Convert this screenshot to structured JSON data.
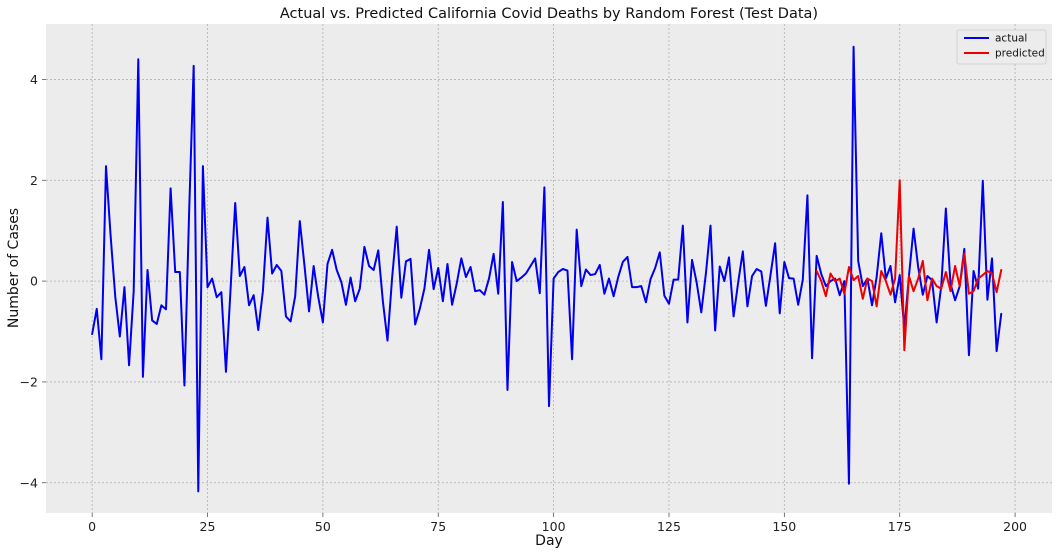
{
  "chart_data": {
    "type": "line",
    "title": "Actual vs. Predicted California Covid Deaths by Random Forest (Test Data)",
    "xlabel": "Day",
    "ylabel": "Number of Cases",
    "xlim": [
      -10,
      208
    ],
    "ylim": [
      -4.6,
      5.1
    ],
    "xticks": [
      0,
      25,
      50,
      75,
      100,
      125,
      150,
      175,
      200
    ],
    "yticks": [
      -4,
      -2,
      0,
      2,
      4
    ],
    "grid": true,
    "legend_position": "top-right",
    "series": [
      {
        "name": "actual",
        "color": "#0000ee",
        "x": [
          0,
          1,
          2,
          3,
          4,
          5,
          6,
          7,
          8,
          9,
          10,
          11,
          12,
          13,
          14,
          15,
          16,
          17,
          18,
          19,
          20,
          21,
          22,
          23,
          24,
          25,
          26,
          27,
          28,
          29,
          30,
          31,
          32,
          33,
          34,
          35,
          36,
          37,
          38,
          39,
          40,
          41,
          42,
          43,
          44,
          45,
          46,
          47,
          48,
          49,
          50,
          51,
          52,
          53,
          54,
          55,
          56,
          57,
          58,
          59,
          60,
          61,
          62,
          63,
          64,
          65,
          66,
          67,
          68,
          69,
          70,
          71,
          72,
          73,
          74,
          75,
          76,
          77,
          78,
          79,
          80,
          81,
          82,
          83,
          84,
          85,
          86,
          87,
          88,
          89,
          90,
          91,
          92,
          93,
          94,
          95,
          96,
          97,
          98,
          99,
          100,
          101,
          102,
          103,
          104,
          105,
          106,
          107,
          108,
          109,
          110,
          111,
          112,
          113,
          114,
          115,
          116,
          117,
          118,
          119,
          120,
          121,
          122,
          123,
          124,
          125,
          126,
          127,
          128,
          129,
          130,
          131,
          132,
          133,
          134,
          135,
          136,
          137,
          138,
          139,
          140,
          141,
          142,
          143,
          144,
          145,
          146,
          147,
          148,
          149,
          150,
          151,
          152,
          153,
          154,
          155,
          156,
          157,
          158,
          159,
          160,
          161,
          162,
          163,
          164,
          165,
          166,
          167,
          168,
          169,
          170,
          171,
          172,
          173,
          174,
          175,
          176,
          177,
          178,
          179,
          180,
          181,
          182,
          183,
          184,
          185,
          186,
          187,
          188,
          189,
          190,
          191,
          192,
          193,
          194,
          195,
          196,
          197
        ],
        "values": [
          -1.05,
          -0.55,
          -1.55,
          2.28,
          0.9,
          -0.3,
          -1.1,
          -0.12,
          -1.67,
          -0.2,
          4.4,
          -1.9,
          0.22,
          -0.78,
          -0.85,
          -0.48,
          -0.56,
          1.84,
          0.18,
          0.18,
          -2.07,
          1.32,
          4.27,
          -4.17,
          2.28,
          -0.12,
          0.05,
          -0.32,
          -0.22,
          -1.8,
          -0.15,
          1.55,
          0.1,
          0.28,
          -0.48,
          -0.28,
          -0.97,
          -0.2,
          1.26,
          0.15,
          0.32,
          0.2,
          -0.7,
          -0.8,
          -0.3,
          1.19,
          0.32,
          -0.6,
          0.3,
          -0.32,
          -0.82,
          0.34,
          0.62,
          0.22,
          -0.02,
          -0.47,
          0.07,
          -0.4,
          -0.15,
          0.68,
          0.3,
          0.22,
          0.61,
          -0.4,
          -1.18,
          0.06,
          1.08,
          -0.33,
          0.39,
          0.44,
          -0.86,
          -0.55,
          -0.15,
          0.62,
          -0.16,
          0.26,
          -0.4,
          0.34,
          -0.47,
          -0.05,
          0.45,
          0.08,
          0.28,
          -0.2,
          -0.18,
          -0.27,
          0.05,
          0.54,
          -0.25,
          1.57,
          -2.16,
          0.38,
          0.0,
          0.07,
          0.15,
          0.3,
          0.45,
          -0.24,
          1.86,
          -2.48,
          0.05,
          0.18,
          0.24,
          0.21,
          -1.55,
          1.02,
          -0.1,
          0.23,
          0.12,
          0.14,
          0.32,
          -0.25,
          0.05,
          -0.3,
          0.08,
          0.38,
          0.48,
          -0.12,
          -0.12,
          -0.1,
          -0.42,
          0.04,
          0.26,
          0.57,
          -0.29,
          -0.45,
          0.03,
          0.03,
          1.1,
          -0.82,
          0.42,
          -0.03,
          -0.62,
          0.15,
          1.1,
          -0.98,
          0.29,
          0.0,
          0.47,
          -0.7,
          -0.02,
          0.59,
          -0.5,
          0.1,
          0.24,
          0.19,
          -0.49,
          0.12,
          0.75,
          -0.64,
          0.38,
          0.06,
          0.05,
          -0.47,
          0.03,
          1.7,
          -1.53,
          0.5,
          0.14,
          -0.1,
          0.0,
          0.05,
          -0.28,
          0.0,
          -4.02,
          4.65,
          0.4,
          -0.1,
          0.05,
          -0.48,
          0.08,
          0.95,
          0.05,
          0.3,
          -0.42,
          0.12,
          -0.95,
          0.1,
          1.04,
          0.28,
          -0.27,
          0.1,
          0.02,
          -0.82,
          -0.1,
          1.44,
          -0.05,
          -0.38,
          -0.1,
          0.64,
          -1.47,
          0.2,
          -0.15,
          1.99,
          -0.37,
          0.45,
          -1.39,
          -0.65
        ]
      },
      {
        "name": "predicted",
        "color": "#ee0000",
        "x": [
          157,
          158,
          159,
          160,
          161,
          162,
          163,
          164,
          165,
          166,
          167,
          168,
          169,
          170,
          171,
          172,
          173,
          174,
          175,
          176,
          177,
          178,
          179,
          180,
          181,
          182,
          183,
          184,
          185,
          186,
          187,
          188,
          189,
          190,
          191,
          192,
          193,
          194,
          195,
          196,
          197
        ],
        "values": [
          0.2,
          0.0,
          -0.3,
          0.15,
          0.0,
          0.05,
          -0.25,
          0.28,
          0.02,
          0.1,
          -0.35,
          0.05,
          0.0,
          -0.5,
          0.2,
          0.0,
          -0.27,
          0.05,
          2.0,
          -1.37,
          0.1,
          -0.2,
          0.05,
          0.4,
          -0.38,
          0.05,
          -0.1,
          -0.15,
          0.18,
          -0.2,
          0.3,
          -0.1,
          0.55,
          -0.25,
          -0.2,
          0.05,
          0.12,
          0.2,
          0.15,
          -0.22,
          0.22
        ]
      }
    ]
  }
}
